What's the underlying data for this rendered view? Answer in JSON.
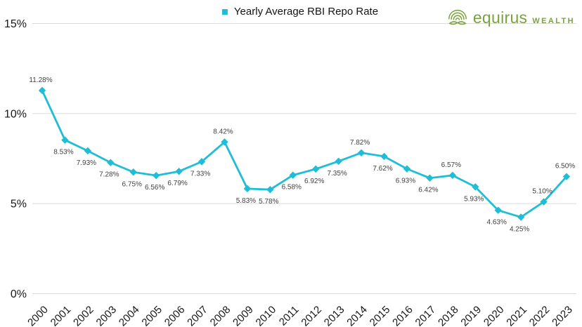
{
  "header": {
    "legend": {
      "label": "Yearly Average RBI Repo Rate",
      "marker_color": "#1EBED6"
    },
    "logo": {
      "brand": "equirus",
      "suffix": "WEALTH",
      "color": "#7AA33E",
      "icon": "tree-icon"
    }
  },
  "chart_data": {
    "type": "line",
    "title": "",
    "xlabel": "",
    "ylabel": "",
    "categories": [
      "2000",
      "2001",
      "2002",
      "2003",
      "2004",
      "2005",
      "2006",
      "2007",
      "2008",
      "2009",
      "2010",
      "2011",
      "2012",
      "2013",
      "2014",
      "2015",
      "2016",
      "2017",
      "2018",
      "2019",
      "2020",
      "2021",
      "2022",
      "2023"
    ],
    "series": [
      {
        "name": "Yearly Average RBI Repo Rate",
        "values": [
          11.28,
          8.53,
          7.93,
          7.28,
          6.75,
          6.56,
          6.79,
          7.33,
          8.42,
          5.83,
          5.78,
          6.58,
          6.92,
          7.35,
          7.82,
          7.62,
          6.93,
          6.42,
          6.57,
          5.93,
          4.63,
          4.25,
          5.1,
          6.5
        ]
      }
    ],
    "data_labels": [
      "11.28%",
      "8.53%",
      "7.93%",
      "7.28%",
      "6.75%",
      "6.56%",
      "6.79%",
      "7.33%",
      "8.42%",
      "5.83%",
      "5.78%",
      "6.58%",
      "6.92%",
      "7.35%",
      "7.82%",
      "7.62%",
      "6.93%",
      "6.42%",
      "6.57%",
      "5.93%",
      "4.63%",
      "4.25%",
      "5.10%",
      "6.50%"
    ],
    "label_sides": [
      "above",
      "below",
      "below",
      "below",
      "below",
      "below",
      "below",
      "below",
      "above",
      "below",
      "below",
      "below",
      "below",
      "below",
      "above",
      "below",
      "below",
      "below",
      "above",
      "below",
      "below",
      "below",
      "above",
      "above"
    ],
    "ylim": [
      0,
      15
    ],
    "yticks": [
      0,
      5,
      10,
      15
    ],
    "ytick_labels": [
      "0%",
      "5%",
      "10%",
      "15%"
    ],
    "grid": true,
    "legend_position": "top-center",
    "marker": "diamond",
    "colors": {
      "line": "#1EBED6",
      "grid": "#DBDBDB",
      "axis_text": "#161616",
      "data_label": "#404040"
    }
  }
}
